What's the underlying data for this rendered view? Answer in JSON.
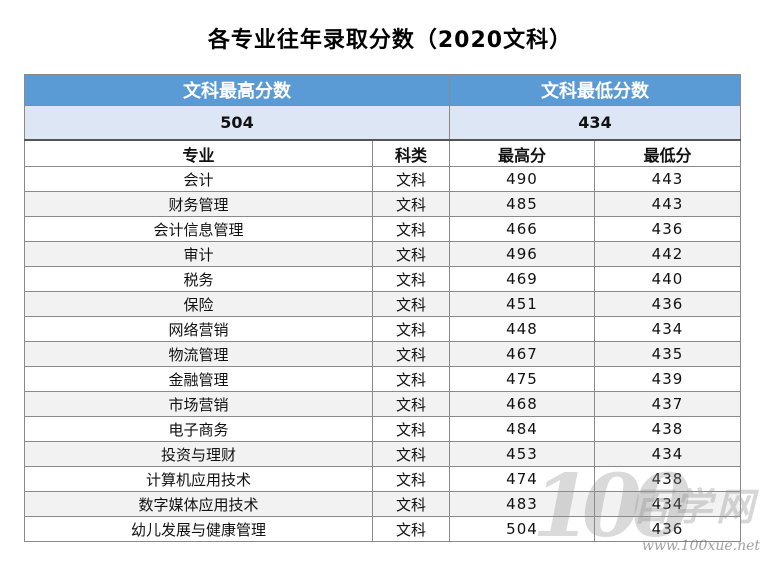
{
  "title": "各专业往年录取分数（2020文科）",
  "summary": {
    "max_label": "文科最高分数",
    "min_label": "文科最低分数",
    "max_value": "504",
    "min_value": "434"
  },
  "columns": {
    "major": "专业",
    "category": "科类",
    "max": "最高分",
    "min": "最低分"
  },
  "rows": [
    {
      "major": "会计",
      "category": "文科",
      "max": "490",
      "min": "443"
    },
    {
      "major": "财务管理",
      "category": "文科",
      "max": "485",
      "min": "443"
    },
    {
      "major": "会计信息管理",
      "category": "文科",
      "max": "466",
      "min": "436"
    },
    {
      "major": "审计",
      "category": "文科",
      "max": "496",
      "min": "442"
    },
    {
      "major": "税务",
      "category": "文科",
      "max": "469",
      "min": "440"
    },
    {
      "major": "保险",
      "category": "文科",
      "max": "451",
      "min": "436"
    },
    {
      "major": "网络营销",
      "category": "文科",
      "max": "448",
      "min": "434"
    },
    {
      "major": "物流管理",
      "category": "文科",
      "max": "467",
      "min": "435"
    },
    {
      "major": "金融管理",
      "category": "文科",
      "max": "475",
      "min": "439"
    },
    {
      "major": "市场营销",
      "category": "文科",
      "max": "468",
      "min": "437"
    },
    {
      "major": "电子商务",
      "category": "文科",
      "max": "484",
      "min": "438"
    },
    {
      "major": "投资与理财",
      "category": "文科",
      "max": "453",
      "min": "434"
    },
    {
      "major": "计算机应用技术",
      "category": "文科",
      "max": "474",
      "min": "438"
    },
    {
      "major": "数字媒体应用技术",
      "category": "文科",
      "max": "483",
      "min": "434"
    },
    {
      "major": "幼儿发展与健康管理",
      "category": "文科",
      "max": "504",
      "min": "436"
    }
  ],
  "watermark": {
    "number": "100",
    "text": "百学网",
    "url": "www.100xue.net"
  }
}
